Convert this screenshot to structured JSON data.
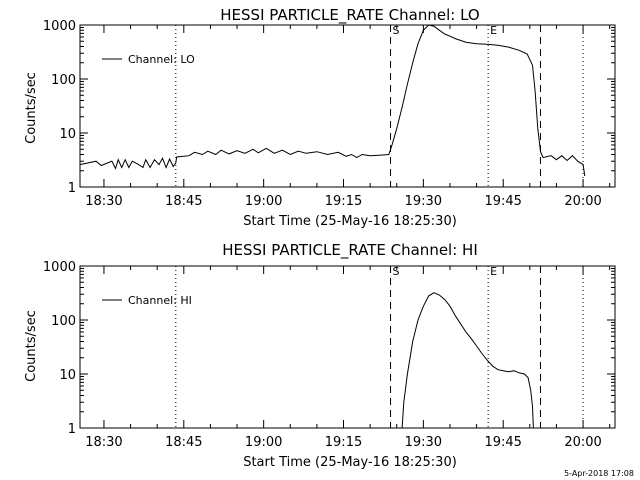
{
  "timestamp": "5-Apr-2018 17:08",
  "chart_data": [
    {
      "type": "line",
      "title": "HESSI PARTICLE_RATE Channel: LO",
      "xlabel": "Start Time (25-May-16 18:25:30)",
      "ylabel": "Counts/sec",
      "y_scale": "log",
      "ylim": [
        1,
        1000
      ],
      "yticks": [
        "1",
        "10",
        "100",
        "1000"
      ],
      "xlim": [
        "18:25:30",
        "20:06:00"
      ],
      "xticks": [
        "18:30",
        "18:45",
        "19:00",
        "19:15",
        "19:30",
        "19:45",
        "20:00"
      ],
      "legend": {
        "label": "Channel: LO",
        "position": "top-left"
      },
      "markers": [
        {
          "time": "18:43:30",
          "style": "dotted",
          "label": ""
        },
        {
          "time": "19:23:50",
          "style": "dashed",
          "label": "S"
        },
        {
          "time": "19:42:10",
          "style": "dotted",
          "label": "E"
        },
        {
          "time": "19:52:00",
          "style": "dashed",
          "label": ""
        },
        {
          "time": "20:00:00",
          "style": "dotted",
          "label": ""
        }
      ],
      "series": [
        {
          "name": "Channel: LO",
          "points": [
            [
              "18:25:30",
              2.6
            ],
            [
              "18:28:30",
              3.0
            ],
            [
              "18:29:30",
              2.5
            ],
            [
              "18:31:30",
              3.0
            ],
            [
              "18:32:10",
              2.2
            ],
            [
              "18:32:40",
              3.2
            ],
            [
              "18:33:20",
              2.3
            ],
            [
              "18:34:00",
              3.2
            ],
            [
              "18:34:40",
              2.3
            ],
            [
              "18:35:20",
              3.0
            ],
            [
              "18:36:30",
              2.6
            ],
            [
              "18:37:20",
              2.3
            ],
            [
              "18:37:50",
              3.2
            ],
            [
              "18:38:40",
              2.3
            ],
            [
              "18:39:30",
              3.2
            ],
            [
              "18:40:20",
              2.6
            ],
            [
              "18:41:00",
              3.4
            ],
            [
              "18:41:40",
              2.3
            ],
            [
              "18:42:20",
              3.3
            ],
            [
              "18:43:00",
              2.4
            ],
            [
              "18:43:30",
              2.8
            ],
            [
              "18:43:40",
              3.6
            ],
            [
              "18:46:00",
              3.8
            ],
            [
              "18:47:00",
              4.4
            ],
            [
              "18:48:30",
              4.0
            ],
            [
              "18:49:30",
              4.6
            ],
            [
              "18:51:00",
              4.0
            ],
            [
              "18:52:00",
              4.8
            ],
            [
              "18:53:30",
              4.1
            ],
            [
              "18:55:00",
              4.7
            ],
            [
              "18:56:30",
              4.2
            ],
            [
              "18:58:00",
              5.0
            ],
            [
              "18:59:00",
              4.3
            ],
            [
              "19:00:30",
              5.2
            ],
            [
              "19:02:00",
              4.2
            ],
            [
              "19:03:30",
              4.8
            ],
            [
              "19:05:00",
              4.0
            ],
            [
              "19:06:30",
              4.6
            ],
            [
              "19:08:00",
              4.2
            ],
            [
              "19:10:00",
              4.5
            ],
            [
              "19:12:00",
              4.0
            ],
            [
              "19:14:00",
              4.4
            ],
            [
              "19:15:30",
              3.7
            ],
            [
              "19:16:30",
              4.0
            ],
            [
              "19:17:30",
              3.5
            ],
            [
              "19:18:30",
              4.0
            ],
            [
              "19:20:00",
              3.8
            ],
            [
              "19:22:00",
              3.9
            ],
            [
              "19:23:30",
              4.0
            ],
            [
              "19:24:00",
              5.5
            ],
            [
              "19:25:00",
              12
            ],
            [
              "19:26:00",
              30
            ],
            [
              "19:27:00",
              80
            ],
            [
              "19:28:00",
              200
            ],
            [
              "19:29:00",
              450
            ],
            [
              "19:30:00",
              800
            ],
            [
              "19:31:00",
              1000
            ],
            [
              "19:32:00",
              950
            ],
            [
              "19:33:00",
              800
            ],
            [
              "19:34:00",
              680
            ],
            [
              "19:35:00",
              620
            ],
            [
              "19:36:00",
              560
            ],
            [
              "19:38:00",
              480
            ],
            [
              "19:40:00",
              450
            ],
            [
              "19:42:00",
              440
            ],
            [
              "19:44:00",
              420
            ],
            [
              "19:46:00",
              390
            ],
            [
              "19:48:00",
              340
            ],
            [
              "19:49:30",
              290
            ],
            [
              "19:50:30",
              180
            ],
            [
              "19:51:00",
              60
            ],
            [
              "19:51:30",
              12
            ],
            [
              "19:52:00",
              4.5
            ],
            [
              "19:52:30",
              3.5
            ],
            [
              "19:54:00",
              3.8
            ],
            [
              "19:55:00",
              3.2
            ],
            [
              "19:56:00",
              3.8
            ],
            [
              "19:57:00",
              3.1
            ],
            [
              "19:58:00",
              3.8
            ],
            [
              "19:59:00",
              3.0
            ],
            [
              "20:00:00",
              2.6
            ],
            [
              "20:00:20",
              1.6
            ]
          ]
        }
      ]
    },
    {
      "type": "line",
      "title": "HESSI PARTICLE_RATE Channel: HI",
      "xlabel": "Start Time (25-May-16 18:25:30)",
      "ylabel": "Counts/sec",
      "y_scale": "log",
      "ylim": [
        1,
        1000
      ],
      "yticks": [
        "1",
        "10",
        "100",
        "1000"
      ],
      "xlim": [
        "18:25:30",
        "20:06:00"
      ],
      "xticks": [
        "18:30",
        "18:45",
        "19:00",
        "19:15",
        "19:30",
        "19:45",
        "20:00"
      ],
      "legend": {
        "label": "Channel: HI",
        "position": "top-left"
      },
      "markers": [
        {
          "time": "18:43:30",
          "style": "dotted",
          "label": ""
        },
        {
          "time": "19:23:50",
          "style": "dashed",
          "label": "S"
        },
        {
          "time": "19:42:10",
          "style": "dotted",
          "label": "E"
        },
        {
          "time": "19:52:00",
          "style": "dashed",
          "label": ""
        },
        {
          "time": "20:00:00",
          "style": "dotted",
          "label": ""
        }
      ],
      "series": [
        {
          "name": "Channel: HI",
          "points": [
            [
              "19:26:00",
              1.0
            ],
            [
              "19:26:20",
              3.0
            ],
            [
              "19:27:00",
              10
            ],
            [
              "19:28:00",
              40
            ],
            [
              "19:29:00",
              100
            ],
            [
              "19:30:00",
              180
            ],
            [
              "19:31:00",
              280
            ],
            [
              "19:32:00",
              320
            ],
            [
              "19:33:00",
              290
            ],
            [
              "19:34:00",
              240
            ],
            [
              "19:35:00",
              180
            ],
            [
              "19:36:00",
              120
            ],
            [
              "19:37:00",
              85
            ],
            [
              "19:38:00",
              60
            ],
            [
              "19:39:00",
              45
            ],
            [
              "19:40:00",
              33
            ],
            [
              "19:41:00",
              24
            ],
            [
              "19:42:00",
              18
            ],
            [
              "19:43:00",
              14
            ],
            [
              "19:44:00",
              12
            ],
            [
              "19:45:00",
              11.5
            ],
            [
              "19:46:00",
              11
            ],
            [
              "19:47:00",
              11.5
            ],
            [
              "19:48:00",
              10.5
            ],
            [
              "19:49:00",
              10
            ],
            [
              "19:49:40",
              8.5
            ],
            [
              "19:50:10",
              5
            ],
            [
              "19:50:30",
              2.5
            ],
            [
              "19:50:40",
              1.0
            ]
          ]
        }
      ]
    }
  ]
}
